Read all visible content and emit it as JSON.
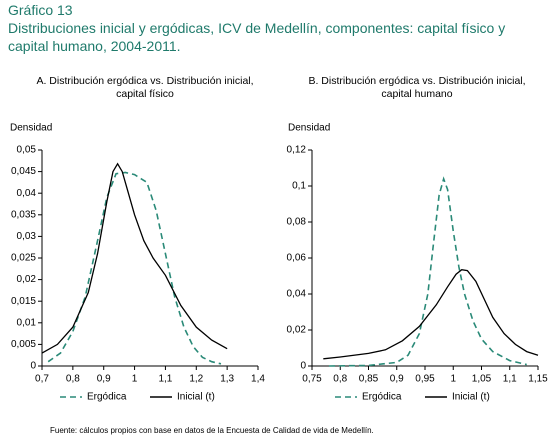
{
  "figure": {
    "label": "Gráfico 13",
    "title": "Distribuciones inicial y ergódicas, ICV de Medellín, componentes: capital físico y capital humano, 2004-2011.",
    "source": "Fuente: cálculos propios con base en datos de la Encuesta de Calidad de vida de Medellín."
  },
  "chart_data": [
    {
      "type": "line",
      "title": "A. Distribución ergódica vs. Distribución inicial, capital físico",
      "y_label": "Densidad",
      "legend": "bottom",
      "xlim": [
        0.7,
        1.4
      ],
      "xticks": [
        {
          "value": 0.7,
          "label": "0,7"
        },
        {
          "value": 0.8,
          "label": "0,8"
        },
        {
          "value": 0.9,
          "label": "0,9"
        },
        1,
        {
          "value": 1.1,
          "label": "1,1"
        },
        {
          "value": 1.2,
          "label": "1,2"
        },
        {
          "value": 1.3,
          "label": "1,3"
        },
        {
          "value": 1.4,
          "label": "1,4"
        }
      ],
      "ylim": [
        0,
        0.05
      ],
      "yticks": [
        0,
        {
          "value": 0.005,
          "label": "0,005"
        },
        {
          "value": 0.01,
          "label": "0,01"
        },
        {
          "value": 0.015,
          "label": "0,015"
        },
        {
          "value": 0.02,
          "label": "0,02"
        },
        {
          "value": 0.025,
          "label": "0,025"
        },
        {
          "value": 0.03,
          "label": "0,03"
        },
        {
          "value": 0.035,
          "label": "0,035"
        },
        {
          "value": 0.04,
          "label": "0,04"
        },
        {
          "value": 0.045,
          "label": "0,045"
        },
        {
          "value": 0.05,
          "label": "0,05"
        }
      ],
      "series": [
        {
          "name": "Ergódica",
          "color": "#2a8a78",
          "style": "dashed",
          "x": [
            0.72,
            0.76,
            0.8,
            0.84,
            0.88,
            0.91,
            0.94,
            0.97,
            1.0,
            1.04,
            1.07,
            1.1,
            1.13,
            1.16,
            1.19,
            1.22,
            1.25,
            1.28
          ],
          "values": [
            0.001,
            0.003,
            0.008,
            0.016,
            0.029,
            0.039,
            0.0445,
            0.0448,
            0.0443,
            0.0425,
            0.036,
            0.026,
            0.016,
            0.009,
            0.0045,
            0.002,
            0.001,
            0.0005
          ]
        },
        {
          "name": "Inicial (t)",
          "color": "#000000",
          "style": "solid",
          "x": [
            0.7,
            0.75,
            0.8,
            0.85,
            0.88,
            0.91,
            0.93,
            0.945,
            0.96,
            0.98,
            1.0,
            1.03,
            1.06,
            1.1,
            1.15,
            1.2,
            1.25,
            1.3
          ],
          "values": [
            0.003,
            0.005,
            0.009,
            0.017,
            0.026,
            0.038,
            0.045,
            0.0468,
            0.045,
            0.04,
            0.035,
            0.029,
            0.025,
            0.021,
            0.014,
            0.009,
            0.006,
            0.004
          ]
        }
      ]
    },
    {
      "type": "line",
      "title": "B. Distribución ergódica vs. Distribución inicial, capital humano",
      "y_label": "Densidad",
      "legend": "bottom",
      "xlim": [
        0.75,
        1.15
      ],
      "xticks": [
        {
          "value": 0.75,
          "label": "0,75"
        },
        {
          "value": 0.8,
          "label": "0,8"
        },
        {
          "value": 0.85,
          "label": "0,85"
        },
        {
          "value": 0.9,
          "label": "0,9"
        },
        {
          "value": 0.95,
          "label": "0,95"
        },
        1,
        {
          "value": 1.05,
          "label": "1,05"
        },
        {
          "value": 1.1,
          "label": "1,1"
        },
        {
          "value": 1.15,
          "label": "1,15"
        }
      ],
      "ylim": [
        0,
        0.12
      ],
      "yticks": [
        0,
        {
          "value": 0.02,
          "label": "0,02"
        },
        {
          "value": 0.04,
          "label": "0,04"
        },
        {
          "value": 0.06,
          "label": "0,06"
        },
        {
          "value": 0.08,
          "label": "0,08"
        },
        {
          "value": 0.1,
          "label": "0,1"
        },
        {
          "value": 0.12,
          "label": "0,12"
        }
      ],
      "series": [
        {
          "name": "Ergódica",
          "color": "#2a8a78",
          "style": "dashed",
          "x": [
            0.78,
            0.85,
            0.9,
            0.92,
            0.94,
            0.955,
            0.965,
            0.975,
            0.983,
            0.99,
            1.0,
            1.01,
            1.02,
            1.035,
            1.05,
            1.07,
            1.1,
            1.13
          ],
          "values": [
            0,
            0.0003,
            0.002,
            0.006,
            0.018,
            0.04,
            0.068,
            0.095,
            0.104,
            0.098,
            0.075,
            0.055,
            0.04,
            0.025,
            0.015,
            0.008,
            0.003,
            0.0008
          ]
        },
        {
          "name": "Inicial (t)",
          "color": "#000000",
          "style": "solid",
          "x": [
            0.77,
            0.8,
            0.85,
            0.88,
            0.91,
            0.94,
            0.97,
            0.99,
            1.005,
            1.015,
            1.025,
            1.04,
            1.055,
            1.07,
            1.09,
            1.11,
            1.13,
            1.15
          ],
          "values": [
            0.004,
            0.005,
            0.007,
            0.009,
            0.014,
            0.022,
            0.034,
            0.044,
            0.051,
            0.0535,
            0.053,
            0.047,
            0.037,
            0.027,
            0.018,
            0.012,
            0.008,
            0.006
          ]
        }
      ]
    }
  ]
}
